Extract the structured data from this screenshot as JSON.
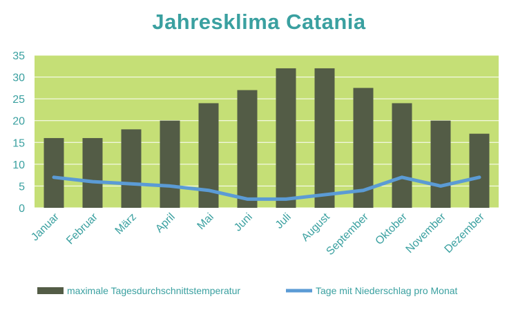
{
  "chart_data": {
    "type": "bar",
    "title": "Jahresklima Catania",
    "categories": [
      "Januar",
      "Februar",
      "März",
      "April",
      "Mai",
      "Juni",
      "Juli",
      "August",
      "September",
      "Oktober",
      "November",
      "Dezember"
    ],
    "series": [
      {
        "name": "maximale Tagesdurchschnittstemperatur",
        "type": "bar",
        "color": "#535c46",
        "values": [
          16,
          16,
          18,
          20,
          24,
          27,
          32,
          32,
          27.5,
          24,
          20,
          17
        ]
      },
      {
        "name": "Tage mit Niederschlag pro Monat",
        "type": "line",
        "color": "#5b9bd5",
        "values": [
          7,
          6,
          5.5,
          5,
          4,
          2,
          2,
          3,
          4,
          7,
          5,
          7
        ]
      }
    ],
    "ylim": [
      0,
      35
    ],
    "yticks": [
      0,
      5,
      10,
      15,
      20,
      25,
      30,
      35
    ],
    "grid": true,
    "legend_position": "bottom",
    "colors": {
      "title": "#3aa0a0",
      "tick_labels": "#3aa0a0",
      "plot_background": "#c5df76",
      "gridline": "#ffffff",
      "legend_text": "#3aa0a0"
    }
  }
}
